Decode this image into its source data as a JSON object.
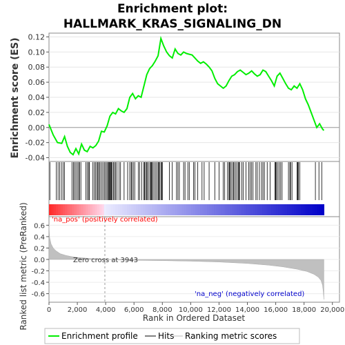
{
  "chart_data": {
    "type": "line",
    "title_line1": "Enrichment plot:",
    "title_line2": "HALLMARK_KRAS_SIGNALING_DN",
    "es_panel": {
      "ylabel": "Enrichment score (ES)",
      "ylim": [
        -0.045,
        0.125
      ],
      "yticks": [
        -0.04,
        -0.02,
        0.0,
        0.02,
        0.04,
        0.06,
        0.08,
        0.1,
        0.12
      ],
      "ytick_labels": [
        "-0.04",
        "-0.02",
        "0.00",
        "0.02",
        "0.04",
        "0.06",
        "0.08",
        "0.10",
        "0.12"
      ],
      "series": [
        {
          "name": "Enrichment profile",
          "color": "#00ee00",
          "x": [
            0,
            300,
            600,
            900,
            1100,
            1300,
            1500,
            1700,
            1900,
            2100,
            2300,
            2500,
            2700,
            2900,
            3100,
            3300,
            3500,
            3700,
            3900,
            4100,
            4300,
            4500,
            4700,
            4900,
            5100,
            5300,
            5500,
            5700,
            5900,
            6100,
            6300,
            6500,
            6700,
            6900,
            7100,
            7300,
            7500,
            7700,
            7900,
            8100,
            8300,
            8500,
            8700,
            8900,
            9100,
            9300,
            9500,
            9700,
            9900,
            10100,
            10300,
            10500,
            10700,
            10900,
            11100,
            11300,
            11500,
            11700,
            11900,
            12100,
            12300,
            12500,
            12700,
            12900,
            13100,
            13300,
            13500,
            13700,
            13900,
            14100,
            14300,
            14500,
            14700,
            14900,
            15100,
            15300,
            15500,
            15700,
            15900,
            16100,
            16300,
            16500,
            16700,
            16900,
            17100,
            17300,
            17500,
            17700,
            17900,
            18100,
            18300,
            18500,
            18700,
            18900,
            19100,
            19300,
            19400
          ],
          "y": [
            0.004,
            -0.01,
            -0.02,
            -0.021,
            -0.012,
            -0.025,
            -0.033,
            -0.036,
            -0.028,
            -0.035,
            -0.022,
            -0.03,
            -0.032,
            -0.025,
            -0.027,
            -0.024,
            -0.018,
            -0.005,
            -0.006,
            0.002,
            0.015,
            0.02,
            0.018,
            0.025,
            0.022,
            0.02,
            0.025,
            0.04,
            0.045,
            0.038,
            0.042,
            0.04,
            0.055,
            0.07,
            0.078,
            0.082,
            0.088,
            0.095,
            0.118,
            0.108,
            0.1,
            0.095,
            0.092,
            0.104,
            0.098,
            0.096,
            0.1,
            0.098,
            0.097,
            0.096,
            0.092,
            0.088,
            0.085,
            0.087,
            0.084,
            0.08,
            0.075,
            0.065,
            0.058,
            0.055,
            0.052,
            0.055,
            0.062,
            0.068,
            0.07,
            0.074,
            0.076,
            0.073,
            0.07,
            0.072,
            0.075,
            0.071,
            0.068,
            0.07,
            0.076,
            0.074,
            0.068,
            0.062,
            0.055,
            0.068,
            0.072,
            0.065,
            0.058,
            0.052,
            0.05,
            0.055,
            0.052,
            0.058,
            0.05,
            0.038,
            0.03,
            0.02,
            0.01,
            0.0,
            0.005,
            -0.002,
            -0.004
          ]
        }
      ],
      "zero_line": 0.0
    },
    "hits_panel": {
      "positions": [
        60,
        520,
        640,
        760,
        880,
        1000,
        1100,
        1620,
        1720,
        1800,
        1900,
        2000,
        2100,
        2150,
        2250,
        2600,
        2700,
        2800,
        2850,
        3100,
        3200,
        3280,
        3380,
        3450,
        3520,
        3600,
        3700,
        3800,
        3900,
        3980,
        4080,
        4150,
        4200,
        4260,
        4300,
        4350,
        4400,
        4450,
        4550,
        4620,
        4700,
        4800,
        4950,
        5050,
        5300,
        5550,
        5700,
        5800,
        5850,
        5950,
        6050,
        6300,
        6400,
        6550,
        6700,
        6750,
        6820,
        6900,
        6950,
        7050,
        7150,
        7200,
        7250,
        7300,
        7400,
        7500,
        7600,
        7700,
        7750,
        7800,
        7900,
        7950,
        8000,
        8500,
        8700,
        9000,
        9100,
        9200,
        9500,
        9600,
        9800,
        9900,
        10200,
        10300,
        10500,
        10800,
        10950,
        11300,
        11700,
        12000,
        12300,
        12400,
        12600,
        12700,
        12750,
        12800,
        12900,
        13000,
        13050,
        13150,
        13250,
        13350,
        13400,
        13450,
        13600,
        13700,
        13900,
        14100,
        14200,
        14300,
        14400,
        14600,
        14700,
        14850,
        15000,
        15100,
        15200,
        15400,
        15600,
        15950,
        16000,
        16050,
        16150,
        16250,
        16350,
        16450,
        16900,
        17000,
        17050,
        17150,
        17500,
        17550,
        17600,
        17700,
        18800,
        19050,
        19250
      ]
    },
    "rank_panel": {
      "ylabel": "Ranked list metric (PreRanked)",
      "xlabel": "Rank in Ordered Dataset",
      "ylim": [
        -0.75,
        0.75
      ],
      "yticks": [
        -0.6,
        -0.4,
        -0.2,
        0.0,
        0.2,
        0.4,
        0.6
      ],
      "ytick_labels": [
        "-0.6",
        "-0.4",
        "-0.2",
        "0.0",
        "0.2",
        "0.4",
        "0.6"
      ],
      "xlim": [
        0,
        20500
      ],
      "xticks": [
        0,
        2000,
        4000,
        6000,
        8000,
        10000,
        12000,
        14000,
        16000,
        18000,
        20000
      ],
      "xtick_labels": [
        "0",
        "2,000",
        "4,000",
        "6,000",
        "8,000",
        "10,000",
        "12,000",
        "14,000",
        "16,000",
        "18,000",
        "20,000"
      ],
      "metric_x": [
        0,
        50,
        150,
        300,
        500,
        800,
        1200,
        1600,
        2000,
        2500,
        3000,
        3500,
        3943,
        5000,
        6000,
        8000,
        10000,
        12000,
        14000,
        15500,
        16500,
        17500,
        18200,
        18700,
        19000,
        19200,
        19300,
        19350,
        19400
      ],
      "metric_y": [
        0.58,
        0.38,
        0.27,
        0.2,
        0.15,
        0.1,
        0.07,
        0.05,
        0.035,
        0.025,
        0.015,
        0.008,
        0.0,
        -0.01,
        -0.015,
        -0.02,
        -0.03,
        -0.045,
        -0.07,
        -0.1,
        -0.13,
        -0.17,
        -0.21,
        -0.26,
        -0.31,
        -0.37,
        -0.45,
        -0.55,
        -0.7
      ],
      "zero_cross_label": "Zero cross at 3943",
      "zero_cross": 3943,
      "pos_label": "'na_pos' (positively correlated)",
      "neg_label": "'na_neg' (negatively correlated)",
      "pos_color": "#ff0000",
      "neg_color": "#0000ff"
    },
    "legend": [
      {
        "label": "Enrichment profile",
        "color": "#00ee00"
      },
      {
        "label": "Hits",
        "color": "#000000"
      },
      {
        "label": "Ranking metric scores",
        "color": "#bbbbbb"
      }
    ]
  }
}
